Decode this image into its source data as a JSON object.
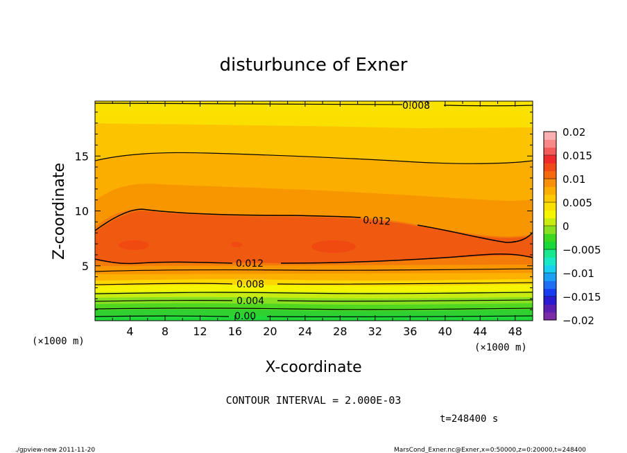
{
  "chart_data": {
    "type": "heatmap",
    "title": "disturbunce of Exner",
    "xlabel": "X-coordinate",
    "ylabel": "Z-coordinate",
    "x_unit_label_left": "(×1000 m)",
    "x_unit_label_right": "(×1000 m)",
    "x_ticks": [
      4,
      8,
      12,
      16,
      20,
      24,
      28,
      32,
      36,
      40,
      44,
      48
    ],
    "y_ticks": [
      5,
      10,
      15
    ],
    "xlim": [
      0,
      50
    ],
    "ylim": [
      0,
      20
    ],
    "colorbar": {
      "ticks": [
        0.02,
        0.015,
        0.01,
        0.005,
        0,
        -0.005,
        -0.01,
        -0.015,
        -0.02
      ],
      "tick_labels": [
        "0.02",
        "0.015",
        "0.01",
        "0.005",
        "0",
        "−0.005",
        "−0.01",
        "−0.015",
        "−0.02"
      ],
      "range": [
        -0.02,
        0.02
      ],
      "colors": [
        "#7b2aa8",
        "#5a1fb0",
        "#2a1bd0",
        "#1a3cf0",
        "#1f6ff5",
        "#1aa0f5",
        "#19d0f0",
        "#19e8c8",
        "#19e890",
        "#19d83a",
        "#3cd820",
        "#88e020",
        "#c8ec10",
        "#f5f500",
        "#fae000",
        "#fcc800",
        "#fcae00",
        "#f8900a",
        "#f46a0e",
        "#f04a18",
        "#f02a2a",
        "#f55a5a",
        "#f88888",
        "#fab0b0"
      ]
    },
    "contour_labels": [
      {
        "text": "0.008",
        "x": 32,
        "z": 19.5
      },
      {
        "text": "0.012",
        "x": 30.5,
        "z": 9.2
      },
      {
        "text": "0.012",
        "x": 18,
        "z": 5.1
      },
      {
        "text": "0.008",
        "x": 18,
        "z": 3.2
      },
      {
        "text": "0.004",
        "x": 18,
        "z": 1.7
      },
      {
        "text": "0.00",
        "x": 18,
        "z": 0.3
      }
    ],
    "contour_interval_text": "CONTOUR INTERVAL = 2.000E-03",
    "time_text": "t=248400 s"
  },
  "footer": {
    "left": "./gpview-new   2011-11-20",
    "right": "MarsCond_Exner.nc@Exner,x=0:50000,z=0:20000,t=248400"
  }
}
